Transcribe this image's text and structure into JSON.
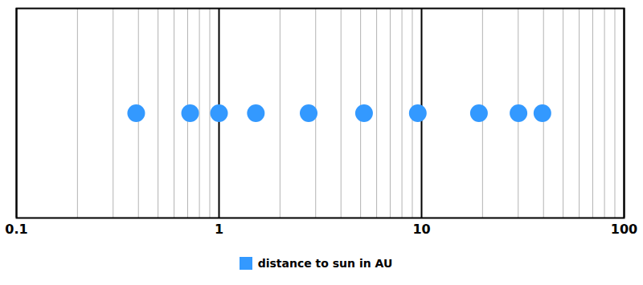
{
  "chart_data": {
    "type": "strip",
    "series": [
      {
        "name": "distance to sun in AU",
        "color": "#3399FF",
        "values": [
          0.39,
          0.72,
          1.0,
          1.52,
          2.77,
          5.2,
          9.58,
          19.2,
          30.1,
          39.5
        ]
      }
    ],
    "xlim": [
      0.1,
      100
    ],
    "xticks": [
      0.1,
      1,
      10,
      100
    ],
    "log": "x",
    "grid": true,
    "legend": "bottom",
    "tick_labels": "x"
  }
}
